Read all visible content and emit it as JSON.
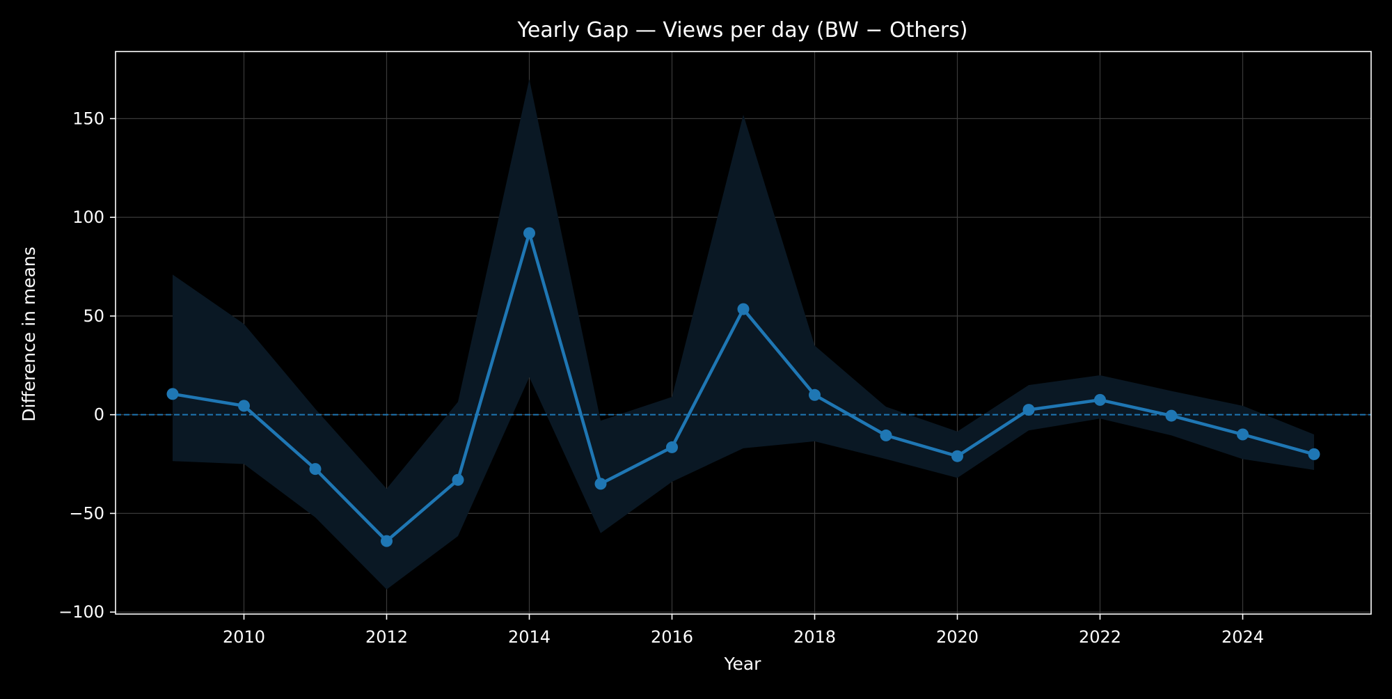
{
  "chart_data": {
    "type": "line",
    "title": "Yearly Gap — Views per day (BW − Others)",
    "xlabel": "Year",
    "ylabel": "Difference in means",
    "x": [
      2009,
      2010,
      2011,
      2012,
      2013,
      2014,
      2015,
      2016,
      2017,
      2018,
      2019,
      2020,
      2021,
      2022,
      2023,
      2024,
      2025
    ],
    "series": [
      {
        "values": [
          10.5,
          4.5,
          -27.5,
          -64,
          -33,
          92,
          -35,
          -16.5,
          53.5,
          10,
          -10.5,
          -21,
          2.5,
          7.5,
          -0.5,
          -10,
          -20
        ],
        "ci_lower": [
          -23.5,
          -25,
          -52,
          -88.5,
          -61.5,
          19,
          -60,
          -34,
          -17,
          -13.5,
          -22.5,
          -32,
          -8,
          -2,
          -10.5,
          -22.5,
          -28
        ],
        "ci_upper": [
          71,
          46,
          3,
          -37.5,
          6.5,
          170,
          -3,
          9,
          152,
          35,
          4,
          -8.5,
          15,
          20,
          12,
          4.5,
          -10
        ]
      }
    ],
    "reference_line": {
      "y": 0,
      "style": "dashed"
    },
    "xlim": [
      2008.2,
      2025.8
    ],
    "ylim": [
      -101,
      184
    ],
    "xticks": [
      2010,
      2012,
      2014,
      2016,
      2018,
      2020,
      2022,
      2024
    ],
    "yticks": [
      -100,
      -50,
      0,
      50,
      100,
      150
    ],
    "ytick_labels": [
      "−100",
      "−50",
      "0",
      "50",
      "100",
      "150"
    ],
    "grid": true,
    "colors": {
      "background": "#000000",
      "line": "#1f77b4",
      "band": "#0a1824",
      "grid": "#3a3a3a",
      "axes": "#ffffff",
      "text": "#ffffff"
    }
  }
}
